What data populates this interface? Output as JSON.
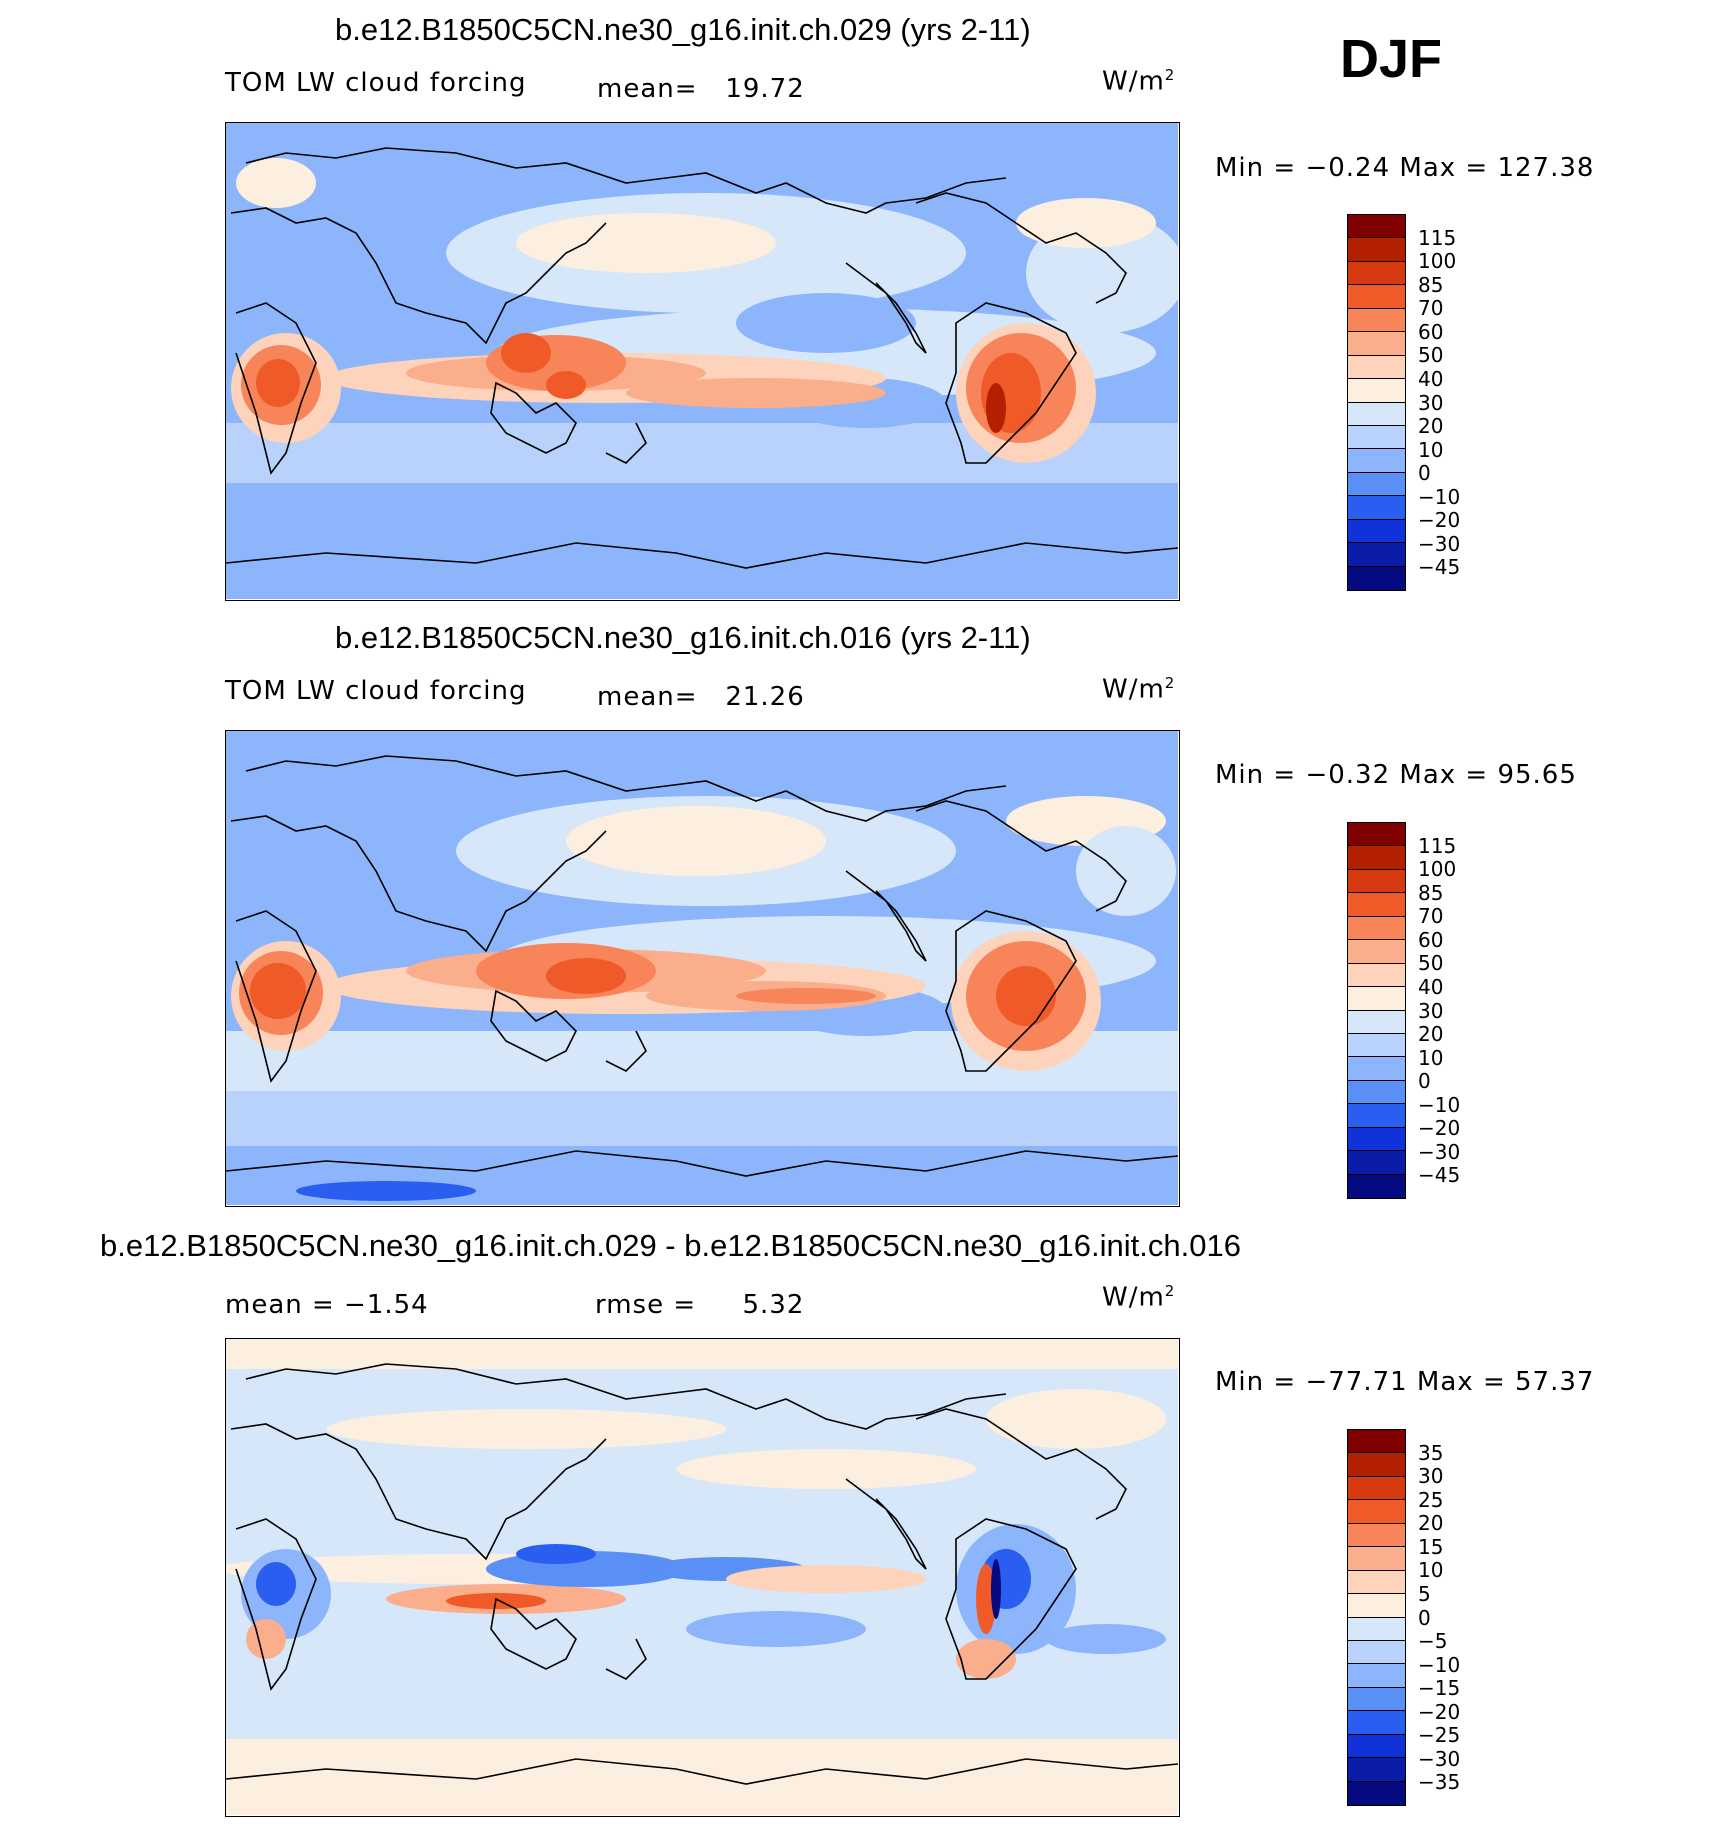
{
  "season": "DJF",
  "units_base": "W/m",
  "units_exp": "2",
  "panels": [
    {
      "title": "b.e12.B1850C5CN.ne30_g16.init.ch.029 (yrs 2-11)",
      "left_label": "TOM LW cloud forcing",
      "stat_label": "mean=",
      "stat_value": "19.72",
      "minmax": "Min =   −0.24  Max  =  127.38",
      "colorbar_levels": [
        "115",
        "100",
        "85",
        "70",
        "60",
        "50",
        "40",
        "30",
        "20",
        "10",
        "0",
        "−10",
        "−20",
        "−30",
        "−45"
      ]
    },
    {
      "title": "b.e12.B1850C5CN.ne30_g16.init.ch.016 (yrs 2-11)",
      "left_label": "TOM LW cloud forcing",
      "stat_label": "mean=",
      "stat_value": "21.26",
      "minmax": "Min =   −0.32  Max  =   95.65",
      "colorbar_levels": [
        "115",
        "100",
        "85",
        "70",
        "60",
        "50",
        "40",
        "30",
        "20",
        "10",
        "0",
        "−10",
        "−20",
        "−30",
        "−45"
      ]
    },
    {
      "title": "b.e12.B1850C5CN.ne30_g16.init.ch.029 - b.e12.B1850C5CN.ne30_g16.init.ch.016",
      "left_label": "mean =   −1.54",
      "stat_label": "rmse =",
      "stat_value": "5.32",
      "minmax": "Min = −77.71  Max  =   57.37",
      "colorbar_levels": [
        "35",
        "30",
        "25",
        "20",
        "15",
        "10",
        "5",
        "0",
        "−5",
        "−10",
        "−15",
        "−20",
        "−25",
        "−30",
        "−35"
      ]
    }
  ],
  "colors": {
    "abs_scale": [
      "#800000",
      "#b22000",
      "#d83a10",
      "#f05a28",
      "#f8845a",
      "#fbae8c",
      "#fdd3bc",
      "#fdefe0",
      "#d6e7fa",
      "#b8d2fb",
      "#8db5fb",
      "#5a8ff5",
      "#2a5ef0",
      "#1032d8",
      "#0a1ca8",
      "#060a80"
    ],
    "diff_scale": [
      "#800000",
      "#b22000",
      "#d83a10",
      "#f05a28",
      "#f8845a",
      "#fbae8c",
      "#fdd3bc",
      "#fdefe0",
      "#d6e7fa",
      "#b8d2fb",
      "#8db5fb",
      "#5a8ff5",
      "#2a5ef0",
      "#1032d8",
      "#0a1ca8",
      "#060a80"
    ]
  }
}
